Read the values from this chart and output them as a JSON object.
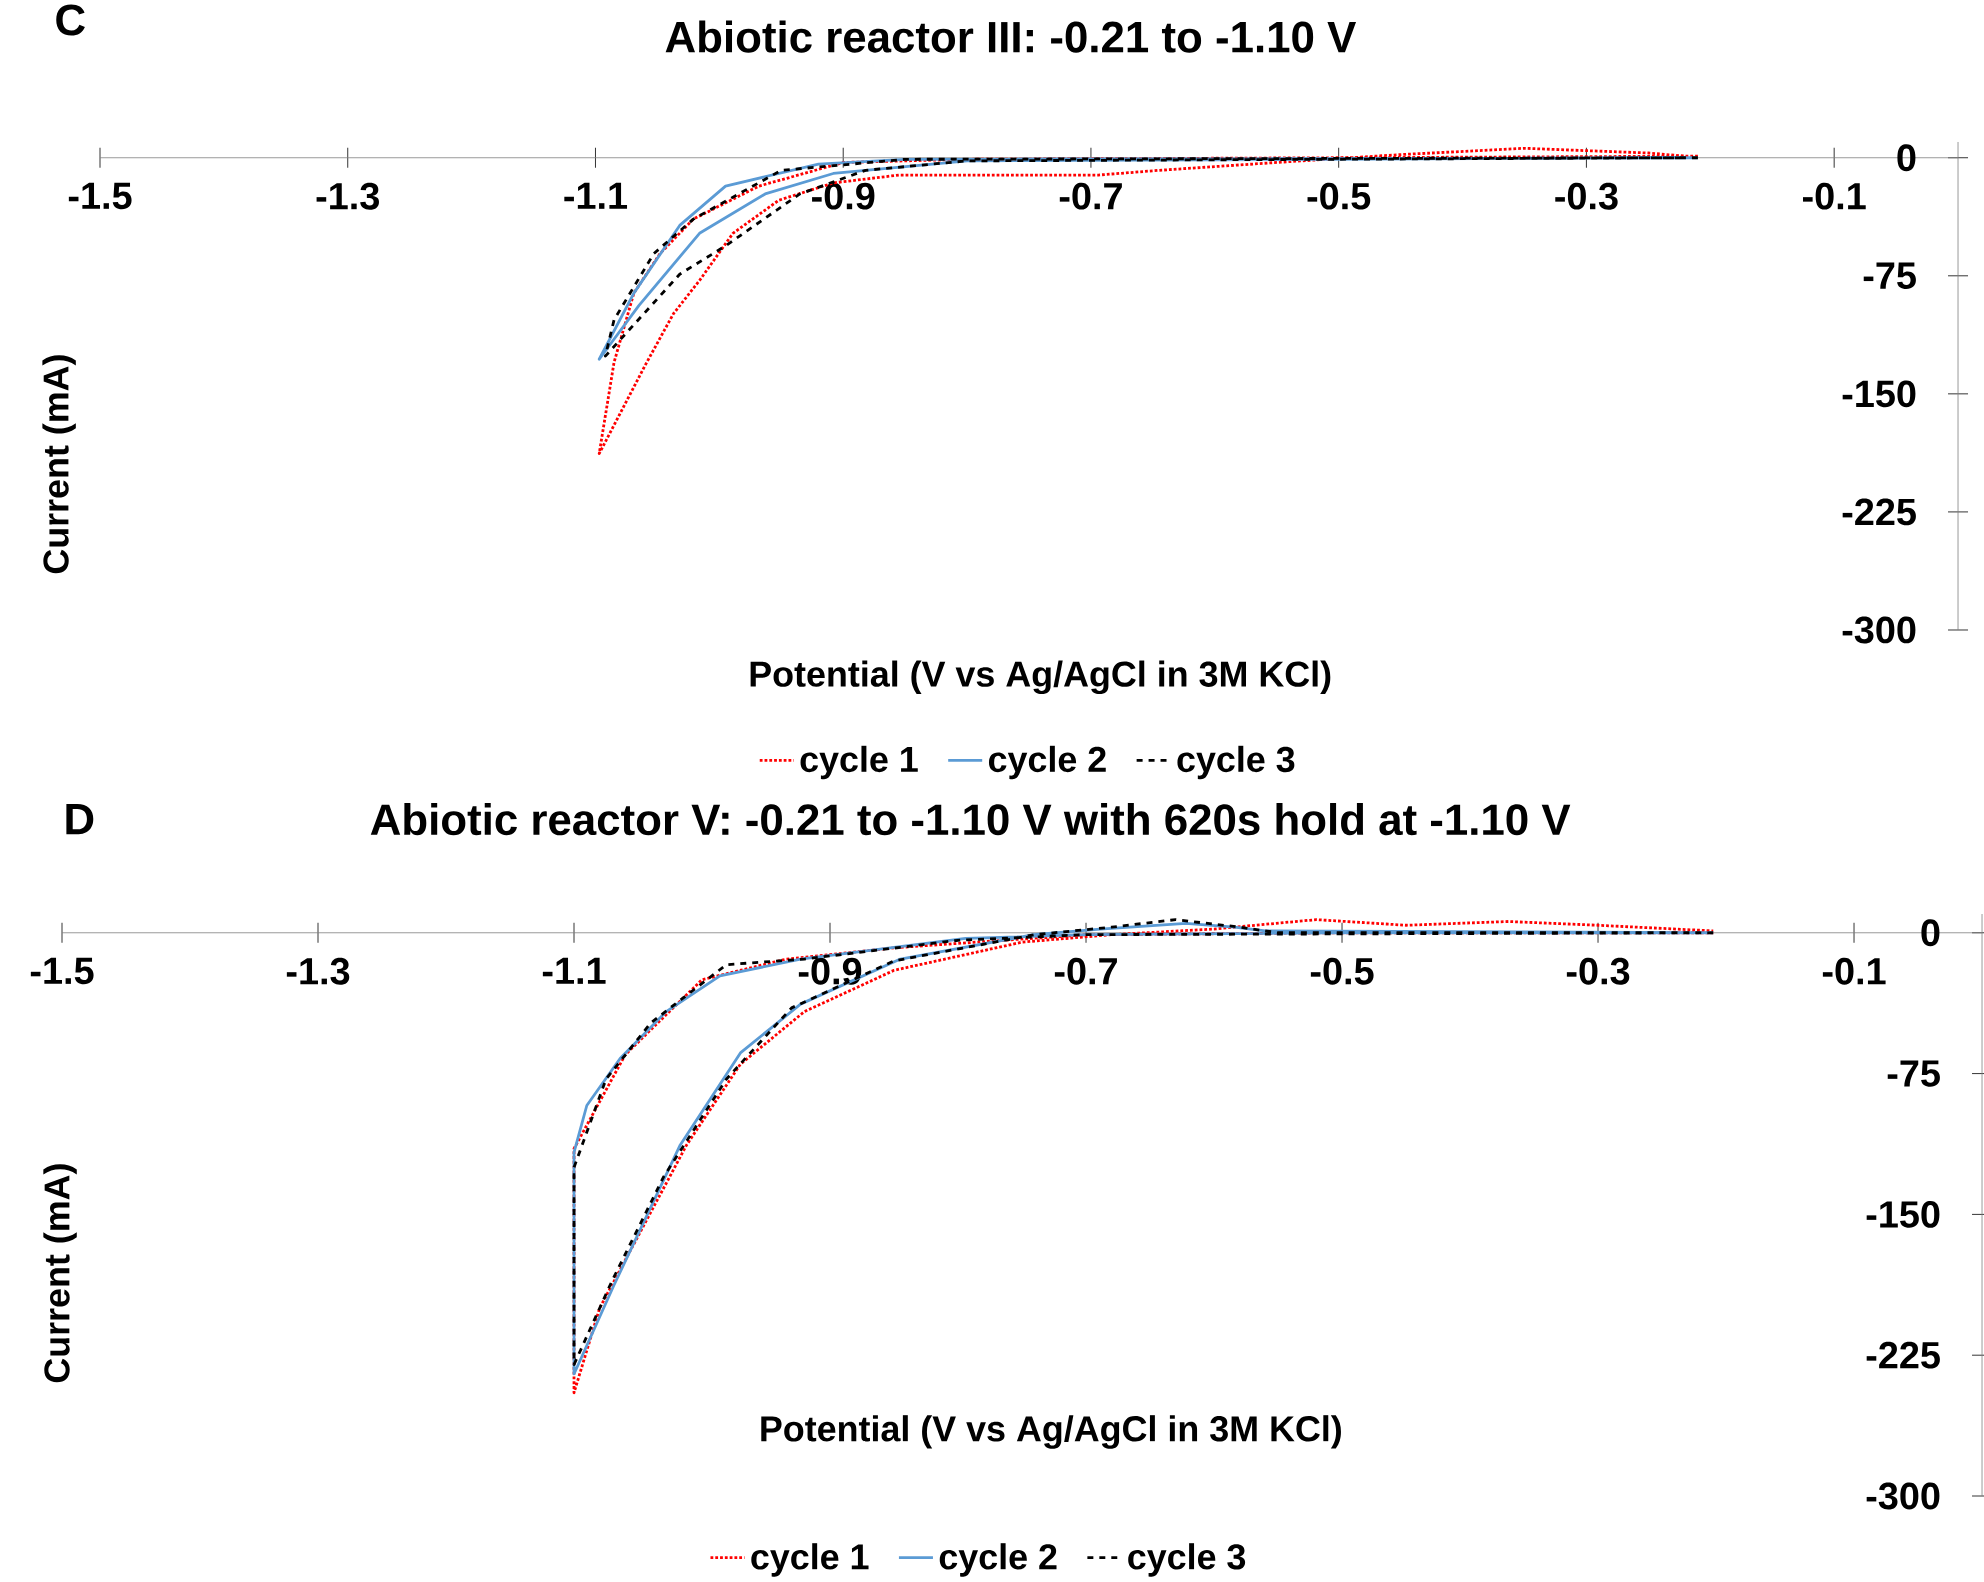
{
  "chart_data": [
    {
      "type": "line",
      "title": "Abiotic reactor III: -0.21 to -1.10 V",
      "xlabel": "Potential (V vs Ag/AgCl in 3M KCl)",
      "ylabel": "Current (mA)",
      "annotations": [
        "C"
      ],
      "xlim": [
        -1.5,
        0
      ],
      "ylim": [
        -300,
        10
      ],
      "xticks": [
        -1.5,
        -1.3,
        -1.1,
        -0.9,
        -0.7,
        -0.5,
        -0.3,
        -0.1
      ],
      "yticks": [
        -300,
        -225,
        -150,
        -75,
        0
      ],
      "legend": "bottom",
      "series": [
        {
          "name": "cycle 1",
          "color": "#ff0000",
          "line_style": "dotted",
          "x": [
            -0.21,
            -0.5,
            -0.8,
            -0.9,
            -0.968,
            -1.021,
            -1.048,
            -1.069,
            -1.085,
            -1.097,
            -1.06,
            -1.037,
            -1.016,
            -0.989,
            -0.952,
            -0.908,
            -0.855,
            -0.694,
            -0.645,
            -0.55,
            -0.45,
            -0.35,
            -0.25,
            -0.22
          ],
          "values": [
            1,
            0,
            -1,
            -3,
            -18,
            -39,
            -61,
            -86,
            -130,
            -188,
            -132,
            -99,
            -78,
            -48,
            -27,
            -16,
            -11,
            -11,
            -8,
            -3,
            2,
            6,
            3,
            1
          ]
        },
        {
          "name": "cycle 2",
          "color": "#5b9bd5",
          "line_style": "solid",
          "x": [
            -0.21,
            -0.85,
            -0.92,
            -0.995,
            -1.032,
            -1.069,
            -1.097,
            -1.065,
            -1.016,
            -0.963,
            -0.908,
            -0.8,
            -0.22
          ],
          "values": [
            0,
            -1,
            -4,
            -18,
            -43,
            -86,
            -128,
            -94,
            -48,
            -23,
            -10,
            -2,
            0
          ]
        },
        {
          "name": "cycle 3",
          "color": "#000000",
          "line_style": "dashed",
          "x": [
            -0.21,
            -0.85,
            -0.95,
            -1.021,
            -1.053,
            -1.085,
            -1.092,
            -1.032,
            -0.995,
            -0.935,
            -0.882,
            -0.8,
            -0.22
          ],
          "values": [
            0,
            -1,
            -8,
            -39,
            -61,
            -103,
            -126,
            -74,
            -56,
            -23,
            -8,
            -2,
            0
          ]
        }
      ]
    },
    {
      "type": "line",
      "title": "Abiotic reactor V: -0.21 to -1.10 V with 620s hold at -1.10 V",
      "xlabel": "Potential (V vs Ag/AgCl in 3M KCl)",
      "ylabel": "Current (mA)",
      "annotations": [
        "D"
      ],
      "xlim": [
        -1.5,
        0
      ],
      "ylim": [
        -300,
        10
      ],
      "xticks": [
        -1.5,
        -1.3,
        -1.1,
        -0.9,
        -0.7,
        -0.5,
        -0.3,
        -0.1
      ],
      "yticks": [
        -300,
        -225,
        -150,
        -75,
        0
      ],
      "legend": "bottom",
      "series": [
        {
          "name": "cycle 1",
          "color": "#ff0000",
          "line_style": "dotted",
          "x": [
            -0.21,
            -0.5,
            -0.7,
            -0.85,
            -0.934,
            -1.0,
            -1.06,
            -1.1,
            -1.1,
            -1.08,
            -1.012,
            -0.97,
            -0.92,
            -0.85,
            -0.75,
            -0.68,
            -0.6,
            -0.52,
            -0.45,
            -0.37,
            -0.3,
            -0.21
          ],
          "values": [
            0,
            0,
            -1,
            -8,
            -14,
            -25,
            -65,
            -115,
            -245,
            -200,
            -113,
            -70,
            -42,
            -20,
            -5,
            -1,
            2,
            7,
            4,
            6,
            4,
            1
          ]
        },
        {
          "name": "cycle 2",
          "color": "#5b9bd5",
          "line_style": "solid",
          "x": [
            -0.21,
            -0.5,
            -0.7,
            -0.794,
            -0.923,
            -0.986,
            -1.028,
            -1.064,
            -1.09,
            -1.1,
            -1.1,
            -1.069,
            -1.017,
            -0.97,
            -0.923,
            -0.845,
            -0.741,
            -0.689,
            -0.622,
            -0.584,
            -0.56,
            -0.22
          ],
          "values": [
            0,
            0,
            -1,
            -3,
            -14,
            -23,
            -42,
            -67,
            -92,
            -117,
            -235,
            -188,
            -113,
            -64,
            -38,
            -14,
            -1,
            2,
            5,
            3,
            1,
            0
          ]
        },
        {
          "name": "cycle 3",
          "color": "#000000",
          "line_style": "dashed",
          "x": [
            -0.21,
            -0.7,
            -0.8,
            -0.92,
            -0.981,
            -1.04,
            -1.075,
            -1.1,
            -1.1,
            -1.07,
            -1.03,
            -0.981,
            -0.93,
            -0.85,
            -0.74,
            -0.68,
            -0.63,
            -0.58,
            -0.55,
            -0.22
          ],
          "values": [
            0,
            -1,
            -4,
            -14,
            -17,
            -48,
            -78,
            -125,
            -230,
            -185,
            -130,
            -78,
            -40,
            -15,
            -1,
            3,
            7,
            3,
            0,
            0
          ]
        }
      ]
    }
  ]
}
